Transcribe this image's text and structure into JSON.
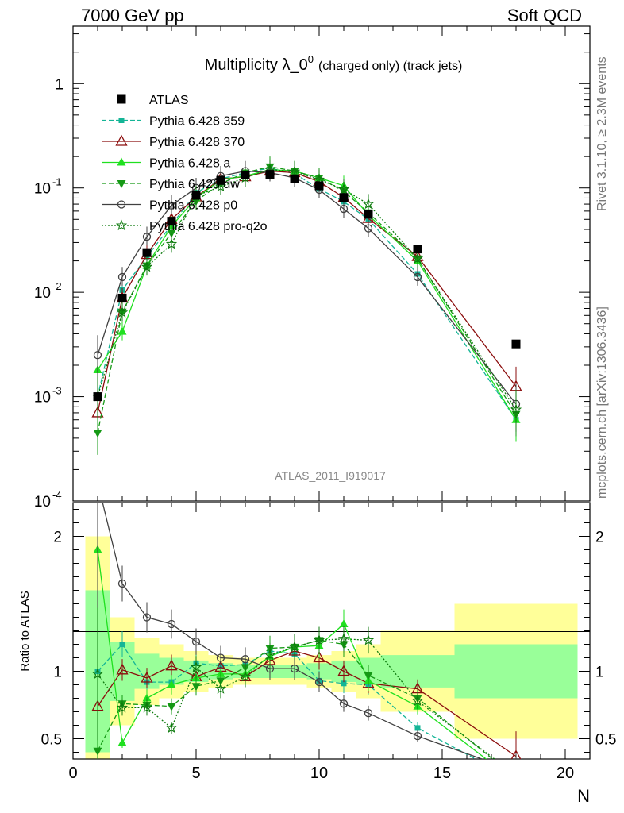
{
  "header": {
    "left": "7000 GeV pp",
    "right": "Soft QCD"
  },
  "title": {
    "main": "Multiplicity λ_0",
    "superscript": "0",
    "suffix": "(charged only) (track jets)"
  },
  "side_text": {
    "rivet": "Rivet 3.1.10, ≥ 2.3M events",
    "mcplots": "mcplots.cern.ch [arXiv:1306.3436]"
  },
  "analysis_label": "ATLAS_2011_I919017",
  "chart_data": {
    "type": "line",
    "xlabel": "N",
    "xlim": [
      0,
      21
    ],
    "main_ylim_log10": [
      -4,
      0.55
    ],
    "ratio_ylabel": "Ratio to ATLAS",
    "ratio_ylim": [
      0.35,
      2.25
    ],
    "x_ticks": [
      "0",
      "5",
      "10",
      "15",
      "20"
    ],
    "main_y_ticks": [
      {
        "base": "10",
        "exp": "-4"
      },
      {
        "base": "10",
        "exp": "-3"
      },
      {
        "base": "10",
        "exp": "-2"
      },
      {
        "base": "10",
        "exp": "-1"
      },
      {
        "base": "1",
        "exp": ""
      }
    ],
    "ratio_y_ticks": [
      "0.5",
      "1",
      "2"
    ],
    "data": {
      "name": "ATLAS",
      "x": [
        1,
        2,
        3,
        4,
        5,
        6,
        7,
        8,
        9,
        10,
        11,
        12,
        14,
        18
      ],
      "y": [
        0.001,
        0.0088,
        0.024,
        0.048,
        0.085,
        0.118,
        0.133,
        0.135,
        0.122,
        0.105,
        0.081,
        0.056,
        0.026,
        0.0032
      ],
      "xerr": [
        0.5,
        0.5,
        0.5,
        0.5,
        0.5,
        0.5,
        0.5,
        0.5,
        0.5,
        0.5,
        0.5,
        0.5,
        1.5,
        2.5
      ],
      "band_inner": [
        0.6,
        0.22,
        0.13,
        0.1,
        0.08,
        0.06,
        0.05,
        0.05,
        0.05,
        0.06,
        0.08,
        0.1,
        0.12,
        0.2
      ],
      "band_outer": [
        1.0,
        0.4,
        0.25,
        0.2,
        0.15,
        0.12,
        0.1,
        0.1,
        0.1,
        0.12,
        0.15,
        0.2,
        0.3,
        0.5
      ]
    },
    "series": [
      {
        "name": "Pythia 6.428 359",
        "color": "#14b596",
        "dash": "6,3",
        "marker": "square",
        "y": [
          0.001,
          0.0105,
          0.022,
          0.044,
          0.09,
          0.122,
          0.14,
          0.155,
          0.137,
          0.098,
          0.074,
          0.05,
          0.015,
          0.0006
        ],
        "ratio": [
          1.0,
          1.2,
          0.92,
          0.92,
          1.06,
          1.04,
          1.05,
          1.15,
          1.13,
          0.93,
          0.91,
          0.9,
          0.58,
          0.19
        ]
      },
      {
        "name": "Pythia 6.428 370",
        "color": "#8b0d0d",
        "dash": "",
        "marker": "triangle-open",
        "y": [
          0.0007,
          0.0088,
          0.023,
          0.05,
          0.082,
          0.122,
          0.128,
          0.145,
          0.14,
          0.115,
          0.081,
          0.051,
          0.022,
          0.00125
        ],
        "ratio": [
          0.74,
          1.01,
          0.95,
          1.04,
          0.96,
          1.03,
          0.96,
          1.08,
          1.15,
          1.1,
          1.0,
          0.91,
          0.87,
          0.37
        ]
      },
      {
        "name": "Pythia 6.428 a",
        "color": "#1fe01f",
        "dash": "",
        "marker": "triangle",
        "y": [
          0.0018,
          0.0042,
          0.018,
          0.043,
          0.08,
          0.12,
          0.13,
          0.15,
          0.145,
          0.125,
          0.105,
          0.055,
          0.02,
          0.0006
        ],
        "ratio": [
          1.9,
          0.47,
          0.8,
          0.9,
          0.95,
          0.98,
          0.98,
          1.11,
          1.18,
          1.19,
          1.35,
          0.93,
          0.74,
          0.18
        ]
      },
      {
        "name": "Pythia 6.428 dw",
        "color": "#159915",
        "dash": "6,3",
        "marker": "triangle-down",
        "y": [
          0.00045,
          0.0065,
          0.018,
          0.037,
          0.075,
          0.11,
          0.14,
          0.16,
          0.145,
          0.125,
          0.093,
          0.058,
          0.021,
          0.00068
        ],
        "ratio": [
          0.41,
          0.76,
          0.75,
          0.74,
          0.89,
          0.93,
          1.03,
          1.17,
          1.18,
          1.23,
          1.2,
          0.97,
          0.8,
          0.21
        ]
      },
      {
        "name": "Pythia 6.428 p0",
        "color": "#404040",
        "dash": "",
        "marker": "circle-open",
        "y": [
          0.0025,
          0.014,
          0.034,
          0.068,
          0.1,
          0.13,
          0.145,
          0.14,
          0.125,
          0.096,
          0.063,
          0.041,
          0.014,
          0.00085
        ],
        "ratio": [
          2.4,
          1.65,
          1.4,
          1.35,
          1.22,
          1.1,
          1.09,
          1.02,
          1.02,
          0.92,
          0.76,
          0.69,
          0.52,
          0.26
        ]
      },
      {
        "name": "Pythia 6.428 pro-q2o",
        "color": "#0d7a0d",
        "dash": "2,2",
        "marker": "star-open",
        "y": [
          0.001,
          0.0064,
          0.0175,
          0.029,
          0.084,
          0.103,
          0.125,
          0.15,
          0.143,
          0.12,
          0.097,
          0.07,
          0.021,
          0.00075
        ],
        "ratio": [
          0.98,
          0.73,
          0.73,
          0.58,
          1.03,
          0.87,
          0.96,
          1.12,
          1.18,
          1.23,
          1.24,
          1.23,
          0.78,
          0.23
        ]
      }
    ]
  }
}
